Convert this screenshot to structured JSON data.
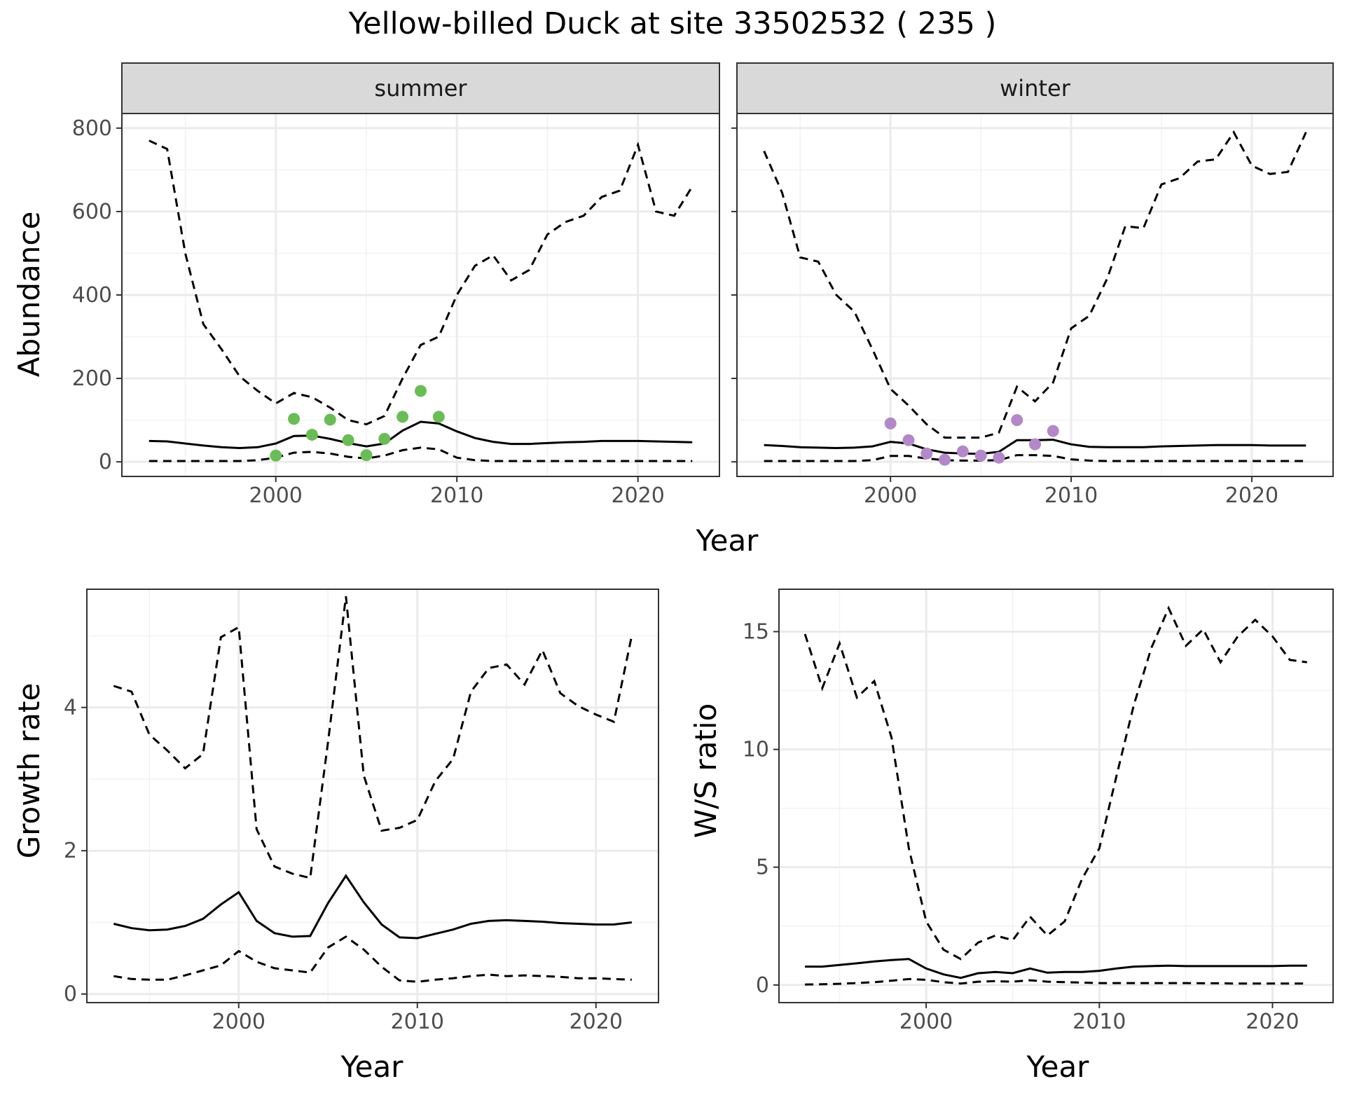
{
  "chart_data": {
    "type": "line",
    "title": "Yellow-billed Duck at site 33502532 ( 235 )",
    "panels": [
      {
        "id": "abundance",
        "type": "line",
        "ylabel": "Abundance",
        "xlabel": "Year",
        "xlim": [
          1991.5,
          2024.5
        ],
        "ylim": [
          -35,
          835
        ],
        "xticks": [
          2000,
          2010,
          2020
        ],
        "yticks": [
          0,
          200,
          400,
          600,
          800
        ],
        "facets": [
          {
            "name": "summer",
            "x": [
              1993,
              1994,
              1995,
              1996,
              1997,
              1998,
              1999,
              2000,
              2001,
              2002,
              2003,
              2004,
              2005,
              2006,
              2007,
              2008,
              2009,
              2010,
              2011,
              2012,
              2013,
              2014,
              2015,
              2016,
              2017,
              2018,
              2019,
              2020,
              2021,
              2022,
              2023
            ],
            "median": [
              50,
              49,
              44,
              39,
              35,
              33,
              35,
              44,
              62,
              63,
              55,
              45,
              37,
              44,
              75,
              96,
              92,
              73,
              57,
              48,
              43,
              43,
              45,
              47,
              48,
              50,
              50,
              50,
              49,
              48,
              47
            ],
            "upper": [
              770,
              750,
              500,
              330,
              270,
              205,
              170,
              140,
              165,
              155,
              130,
              100,
              90,
              110,
              200,
              280,
              300,
              400,
              470,
              495,
              435,
              460,
              545,
              575,
              590,
              635,
              650,
              760,
              600,
              590,
              660
            ],
            "lower": [
              2,
              2,
              2,
              2,
              2,
              2,
              4,
              10,
              22,
              24,
              20,
              12,
              8,
              15,
              28,
              34,
              30,
              10,
              4,
              2,
              2,
              2,
              2,
              2,
              2,
              2,
              2,
              2,
              2,
              2,
              2
            ],
            "point_color": "#6ABD56",
            "points_x": [
              2000,
              2001,
              2002,
              2003,
              2004,
              2005,
              2006,
              2007,
              2008,
              2009
            ],
            "points_y": [
              15,
              103,
              65,
              101,
              52,
              16,
              55,
              108,
              170,
              108
            ]
          },
          {
            "name": "winter",
            "x": [
              1993,
              1994,
              1995,
              1996,
              1997,
              1998,
              1999,
              2000,
              2001,
              2002,
              2003,
              2004,
              2005,
              2006,
              2007,
              2008,
              2009,
              2010,
              2011,
              2012,
              2013,
              2014,
              2015,
              2016,
              2017,
              2018,
              2019,
              2020,
              2021,
              2022,
              2023
            ],
            "median": [
              40,
              38,
              35,
              34,
              33,
              34,
              37,
              48,
              44,
              30,
              22,
              20,
              19,
              24,
              52,
              52,
              53,
              42,
              36,
              35,
              35,
              35,
              37,
              38,
              39,
              40,
              40,
              40,
              39,
              39,
              39
            ],
            "upper": [
              745,
              645,
              490,
              480,
              400,
              360,
              270,
              175,
              135,
              90,
              58,
              58,
              58,
              70,
              180,
              145,
              190,
              320,
              350,
              440,
              565,
              560,
              665,
              680,
              720,
              725,
              790,
              710,
              690,
              695,
              790
            ],
            "lower": [
              2,
              2,
              2,
              2,
              2,
              2,
              4,
              14,
              14,
              8,
              4,
              3,
              3,
              4,
              16,
              16,
              14,
              6,
              3,
              2,
              2,
              2,
              2,
              2,
              2,
              2,
              2,
              2,
              2,
              2,
              2
            ],
            "point_color": "#B388C9",
            "points_x": [
              2000,
              2001,
              2002,
              2003,
              2004,
              2005,
              2006,
              2007,
              2008,
              2009
            ],
            "points_y": [
              92,
              52,
              20,
              5,
              25,
              15,
              10,
              100,
              42,
              74
            ]
          }
        ]
      },
      {
        "id": "growth",
        "type": "line",
        "ylabel": "Growth rate",
        "xlabel": "Year",
        "xlim": [
          1991.5,
          2023.5
        ],
        "ylim": [
          -0.12,
          5.65
        ],
        "xticks": [
          2000,
          2010,
          2020
        ],
        "yticks": [
          0,
          2,
          4
        ],
        "x": [
          1993,
          1994,
          1995,
          1996,
          1997,
          1998,
          1999,
          2000,
          2001,
          2002,
          2003,
          2004,
          2005,
          2006,
          2007,
          2008,
          2009,
          2010,
          2011,
          2012,
          2013,
          2014,
          2015,
          2016,
          2017,
          2018,
          2019,
          2020,
          2021,
          2022
        ],
        "median": [
          0.98,
          0.92,
          0.89,
          0.9,
          0.95,
          1.05,
          1.25,
          1.42,
          1.02,
          0.85,
          0.8,
          0.81,
          1.27,
          1.65,
          1.28,
          0.97,
          0.79,
          0.78,
          0.84,
          0.9,
          0.98,
          1.02,
          1.03,
          1.02,
          1.01,
          0.99,
          0.98,
          0.97,
          0.97,
          1.0
        ],
        "upper": [
          4.3,
          4.22,
          3.62,
          3.4,
          3.15,
          3.35,
          4.98,
          5.12,
          2.3,
          1.78,
          1.68,
          1.62,
          3.52,
          5.55,
          3.05,
          2.28,
          2.32,
          2.43,
          2.97,
          3.28,
          4.22,
          4.55,
          4.6,
          4.32,
          4.8,
          4.2,
          4.02,
          3.9,
          3.8,
          5.0
        ],
        "lower": [
          0.25,
          0.21,
          0.2,
          0.2,
          0.26,
          0.33,
          0.4,
          0.6,
          0.45,
          0.36,
          0.33,
          0.3,
          0.65,
          0.8,
          0.62,
          0.38,
          0.19,
          0.17,
          0.2,
          0.22,
          0.25,
          0.27,
          0.25,
          0.26,
          0.25,
          0.24,
          0.22,
          0.22,
          0.21,
          0.2
        ]
      },
      {
        "id": "ratio",
        "type": "line",
        "ylabel": "W/S ratio",
        "xlabel": "Year",
        "xlim": [
          1991.5,
          2023.5
        ],
        "ylim": [
          -0.75,
          16.8
        ],
        "xticks": [
          2000,
          2010,
          2020
        ],
        "yticks": [
          0,
          5,
          10,
          15
        ],
        "x": [
          1993,
          1994,
          1995,
          1996,
          1997,
          1998,
          1999,
          2000,
          2001,
          2002,
          2003,
          2004,
          2005,
          2006,
          2007,
          2008,
          2009,
          2010,
          2011,
          2012,
          2013,
          2014,
          2015,
          2016,
          2017,
          2018,
          2019,
          2020,
          2021,
          2022
        ],
        "median": [
          0.78,
          0.78,
          0.85,
          0.92,
          1.0,
          1.06,
          1.1,
          0.7,
          0.45,
          0.3,
          0.5,
          0.55,
          0.5,
          0.7,
          0.52,
          0.55,
          0.55,
          0.6,
          0.7,
          0.78,
          0.8,
          0.82,
          0.8,
          0.8,
          0.8,
          0.8,
          0.8,
          0.8,
          0.82,
          0.82
        ],
        "upper": [
          14.9,
          12.6,
          14.5,
          12.2,
          12.9,
          10.5,
          5.8,
          2.7,
          1.5,
          1.1,
          1.8,
          2.1,
          1.9,
          2.9,
          2.1,
          2.7,
          4.5,
          5.8,
          8.9,
          11.9,
          14.3,
          16.0,
          14.4,
          15.1,
          13.7,
          14.8,
          15.5,
          14.8,
          13.8,
          13.7
        ],
        "lower": [
          0.02,
          0.03,
          0.05,
          0.08,
          0.12,
          0.18,
          0.25,
          0.22,
          0.12,
          0.06,
          0.14,
          0.16,
          0.14,
          0.2,
          0.14,
          0.12,
          0.1,
          0.08,
          0.08,
          0.08,
          0.08,
          0.08,
          0.08,
          0.07,
          0.07,
          0.06,
          0.06,
          0.06,
          0.06,
          0.06
        ]
      }
    ]
  }
}
